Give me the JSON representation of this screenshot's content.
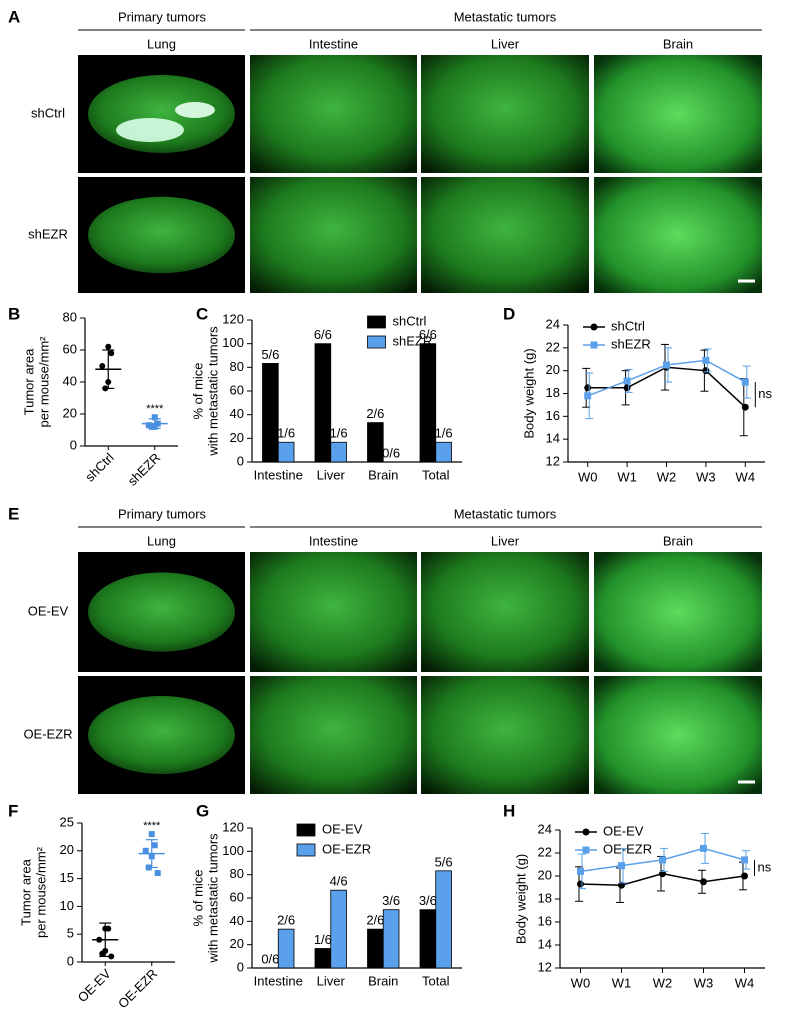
{
  "panel_A": {
    "label": "A",
    "header_left": "Primary tumors",
    "header_right": "Metastatic tumors",
    "columns": [
      "Lung",
      "Intestine",
      "Liver",
      "Brain"
    ],
    "rows": [
      "shCtrl",
      "shEZR"
    ]
  },
  "panel_E": {
    "label": "E",
    "header_left": "Primary tumors",
    "header_right": "Metastatic tumors",
    "columns": [
      "Lung",
      "Intestine",
      "Liver",
      "Brain"
    ],
    "rows": [
      "OE-EV",
      "OE-EZR"
    ]
  },
  "chart_data": [
    {
      "type": "strip",
      "panel": "B",
      "ylabel": [
        "Tumor area",
        "per mouse/mm²"
      ],
      "categories": [
        "shCtrl",
        "shEZR"
      ],
      "colors": [
        "#000000",
        "#4a90e2"
      ],
      "values": [
        [
          62,
          58,
          50,
          40,
          36
        ],
        [
          18,
          14,
          13,
          12,
          12
        ]
      ],
      "means": [
        48,
        14
      ],
      "sds": [
        12,
        3
      ],
      "annotation": "****",
      "ylim": [
        0,
        80
      ],
      "yticks": [
        0,
        20,
        40,
        60,
        80
      ]
    },
    {
      "type": "bar",
      "panel": "C",
      "ylabel": [
        "% of mice",
        "with metastatic tumors"
      ],
      "categories": [
        "Intestine",
        "Liver",
        "Brain",
        "Total"
      ],
      "legend": "upper right",
      "series": [
        {
          "name": "shCtrl",
          "color": "#000000",
          "values": [
            83.3,
            100,
            33.3,
            100
          ],
          "value_labels": [
            "5/6",
            "6/6",
            "2/6",
            "6/6"
          ]
        },
        {
          "name": "shEZR",
          "color": "#5aa0ea",
          "values": [
            16.7,
            16.7,
            0,
            16.7
          ],
          "value_labels": [
            "1/6",
            "1/6",
            "0/6",
            "1/6"
          ]
        }
      ],
      "ylim": [
        0,
        120
      ],
      "yticks": [
        0,
        20,
        40,
        60,
        80,
        100,
        120
      ]
    },
    {
      "type": "line",
      "panel": "D",
      "ylabel": [
        "Body weight (g)"
      ],
      "categories": [
        "W0",
        "W1",
        "W2",
        "W3",
        "W4"
      ],
      "legend": "upper left",
      "annotation": "ns",
      "series": [
        {
          "name": "shCtrl",
          "color": "#000000",
          "marker": "circle",
          "values": [
            18.5,
            18.5,
            20.3,
            20.0,
            16.8
          ],
          "errors": [
            1.7,
            1.5,
            2.0,
            1.8,
            2.5
          ]
        },
        {
          "name": "shEZR",
          "color": "#5aa0ea",
          "marker": "square",
          "values": [
            17.8,
            19.1,
            20.5,
            20.9,
            19.0
          ],
          "errors": [
            2.0,
            1.0,
            1.5,
            1.0,
            1.4
          ]
        }
      ],
      "ylim": [
        12,
        24
      ],
      "yticks": [
        12,
        14,
        16,
        18,
        20,
        22,
        24
      ]
    },
    {
      "type": "strip",
      "panel": "F",
      "ylabel": [
        "Tumor area",
        "per mouse/mm²"
      ],
      "categories": [
        "OE-EV",
        "OE-EZR"
      ],
      "colors": [
        "#000000",
        "#4a90e2"
      ],
      "values": [
        [
          6,
          6,
          4,
          2,
          1.5,
          1
        ],
        [
          23,
          21,
          20,
          19,
          17,
          16
        ]
      ],
      "means": [
        4,
        19.5
      ],
      "sds": [
        3,
        2.5
      ],
      "annotation": "****",
      "ylim": [
        0,
        25
      ],
      "yticks": [
        0,
        5,
        10,
        15,
        20,
        25
      ]
    },
    {
      "type": "bar",
      "panel": "G",
      "ylabel": [
        "% of mice",
        "with metastatic tumors"
      ],
      "categories": [
        "Intestine",
        "Liver",
        "Brain",
        "Total"
      ],
      "legend": "upper left",
      "series": [
        {
          "name": "OE-EV",
          "color": "#000000",
          "values": [
            0,
            16.7,
            33.3,
            50
          ],
          "value_labels": [
            "0/6",
            "1/6",
            "2/6",
            "3/6"
          ]
        },
        {
          "name": "OE-EZR",
          "color": "#5aa0ea",
          "values": [
            33.3,
            66.7,
            50,
            83.3
          ],
          "value_labels": [
            "2/6",
            "4/6",
            "3/6",
            "5/6"
          ]
        }
      ],
      "ylim": [
        0,
        120
      ],
      "yticks": [
        0,
        20,
        40,
        60,
        80,
        100,
        120
      ]
    },
    {
      "type": "line",
      "panel": "H",
      "ylabel": [
        "Body weight (g)"
      ],
      "categories": [
        "W0",
        "W1",
        "W2",
        "W3",
        "W4"
      ],
      "legend": "upper left",
      "annotation": "ns",
      "series": [
        {
          "name": "OE-EV",
          "color": "#000000",
          "marker": "circle",
          "values": [
            19.3,
            19.2,
            20.2,
            19.5,
            20.0
          ],
          "errors": [
            1.5,
            1.5,
            1.5,
            1.0,
            1.2
          ]
        },
        {
          "name": "OE-EZR",
          "color": "#5aa0ea",
          "marker": "square",
          "values": [
            20.4,
            20.9,
            21.4,
            22.4,
            21.4
          ],
          "errors": [
            1.5,
            1.5,
            1.0,
            1.3,
            0.8
          ]
        }
      ],
      "ylim": [
        12,
        24
      ],
      "yticks": [
        12,
        14,
        16,
        18,
        20,
        22,
        24
      ]
    }
  ]
}
